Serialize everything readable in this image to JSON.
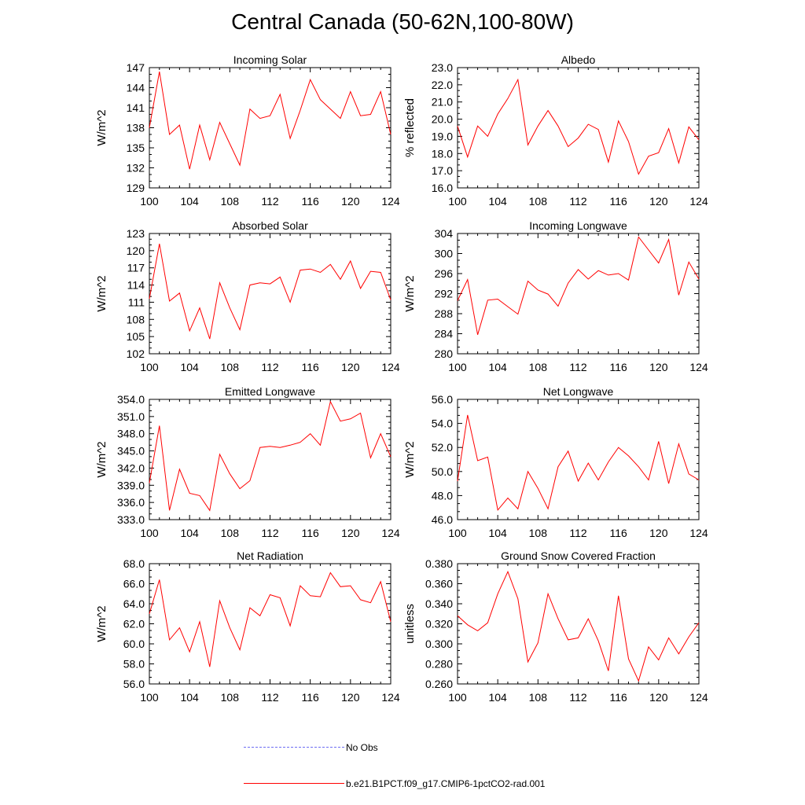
{
  "title": "Central Canada (50-62N,100-80W)",
  "legend": [
    {
      "label": "No Obs",
      "color": "#6d6df2",
      "style": "dashed"
    },
    {
      "label": "b.e21.B1PCT.f09_g17.CMIP6-1pctCO2-rad.001",
      "color": "#ff0000",
      "style": "solid"
    }
  ],
  "colors": {
    "series": "#ff0000",
    "axes": "#000000"
  },
  "chart_data": [
    {
      "type": "line",
      "title": "Incoming Solar",
      "ylabel": "W/m^2",
      "x": [
        100,
        101,
        102,
        103,
        104,
        105,
        106,
        107,
        108,
        109,
        110,
        111,
        112,
        113,
        114,
        115,
        116,
        117,
        118,
        119,
        120,
        121,
        122,
        123,
        124
      ],
      "xlim": [
        100,
        124
      ],
      "xticks": [
        "100",
        "104",
        "108",
        "112",
        "116",
        "120",
        "124"
      ],
      "ylim": [
        129,
        147
      ],
      "yticks": [
        "129",
        "132",
        "135",
        "138",
        "141",
        "144",
        "147"
      ],
      "series": [
        {
          "values": [
            138,
            146.4,
            137,
            138.4,
            131.8,
            138.4,
            133.2,
            138.8,
            135.6,
            132.4,
            140.8,
            139.4,
            139.8,
            143,
            136.4,
            140.6,
            145.2,
            142.2,
            140.8,
            139.4,
            143.4,
            139.8,
            140,
            143.4,
            137
          ]
        }
      ]
    },
    {
      "type": "line",
      "title": "Albedo",
      "ylabel": "% reflected",
      "x": [
        100,
        101,
        102,
        103,
        104,
        105,
        106,
        107,
        108,
        109,
        110,
        111,
        112,
        113,
        114,
        115,
        116,
        117,
        118,
        119,
        120,
        121,
        122,
        123,
        124
      ],
      "xlim": [
        100,
        124
      ],
      "xticks": [
        "100",
        "104",
        "108",
        "112",
        "116",
        "120",
        "124"
      ],
      "ylim": [
        16,
        23
      ],
      "yticks": [
        "16.0",
        "17.0",
        "18.0",
        "19.0",
        "20.0",
        "21.0",
        "22.0",
        "23.0"
      ],
      "series": [
        {
          "values": [
            19.6,
            17.8,
            19.6,
            19,
            20.3,
            21.2,
            22.3,
            18.5,
            19.6,
            20.5,
            19.6,
            18.4,
            18.9,
            19.7,
            19.4,
            17.5,
            19.9,
            18.7,
            16.8,
            17.85,
            18.05,
            19.45,
            17.45,
            19.55,
            18.8
          ]
        }
      ]
    },
    {
      "type": "line",
      "title": "Absorbed Solar",
      "ylabel": "W/m^2",
      "x": [
        100,
        101,
        102,
        103,
        104,
        105,
        106,
        107,
        108,
        109,
        110,
        111,
        112,
        113,
        114,
        115,
        116,
        117,
        118,
        119,
        120,
        121,
        122,
        123,
        124
      ],
      "xlim": [
        100,
        124
      ],
      "xticks": [
        "100",
        "104",
        "108",
        "112",
        "116",
        "120",
        "124"
      ],
      "ylim": [
        102,
        123
      ],
      "yticks": [
        "102",
        "105",
        "108",
        "111",
        "114",
        "117",
        "120",
        "123"
      ],
      "series": [
        {
          "values": [
            111.6,
            121.2,
            111.2,
            112.6,
            106,
            110,
            104.6,
            114.4,
            110,
            106.2,
            114,
            114.4,
            114.2,
            115.4,
            111,
            116.6,
            116.8,
            116.2,
            117.6,
            115,
            118.2,
            113.4,
            116.4,
            116.2,
            111.4
          ]
        }
      ]
    },
    {
      "type": "line",
      "title": "Incoming Longwave",
      "ylabel": "W/m^2",
      "x": [
        100,
        101,
        102,
        103,
        104,
        105,
        106,
        107,
        108,
        109,
        110,
        111,
        112,
        113,
        114,
        115,
        116,
        117,
        118,
        119,
        120,
        121,
        122,
        123,
        124
      ],
      "xlim": [
        100,
        124
      ],
      "xticks": [
        "100",
        "104",
        "108",
        "112",
        "116",
        "120",
        "124"
      ],
      "ylim": [
        280,
        304
      ],
      "yticks": [
        "280",
        "284",
        "288",
        "292",
        "296",
        "300",
        "304"
      ],
      "series": [
        {
          "values": [
            290.6,
            294.8,
            283.8,
            290.7,
            290.9,
            289.4,
            287.9,
            294.5,
            292.7,
            291.9,
            289.5,
            294.1,
            296.8,
            294.9,
            296.6,
            295.7,
            296,
            294.7,
            303.3,
            300.7,
            298.1,
            302.8,
            291.7,
            298.3,
            294.9
          ]
        }
      ]
    },
    {
      "type": "line",
      "title": "Emitted Longwave",
      "ylabel": "W/m^2",
      "x": [
        100,
        101,
        102,
        103,
        104,
        105,
        106,
        107,
        108,
        109,
        110,
        111,
        112,
        113,
        114,
        115,
        116,
        117,
        118,
        119,
        120,
        121,
        122,
        123,
        124
      ],
      "xlim": [
        100,
        124
      ],
      "xticks": [
        "100",
        "104",
        "108",
        "112",
        "116",
        "120",
        "124"
      ],
      "ylim": [
        333,
        354
      ],
      "yticks": [
        "333.0",
        "336.0",
        "339.0",
        "342.0",
        "345.0",
        "348.0",
        "351.0",
        "354.0"
      ],
      "series": [
        {
          "values": [
            339.4,
            349.4,
            334.6,
            341.8,
            337.6,
            337.2,
            334.6,
            344.4,
            341,
            338.4,
            339.8,
            345.6,
            345.8,
            345.6,
            346,
            346.5,
            348,
            346,
            353.6,
            350.2,
            350.6,
            351.6,
            343.8,
            348,
            344
          ]
        }
      ]
    },
    {
      "type": "line",
      "title": "Net Longwave",
      "ylabel": "W/m^2",
      "x": [
        100,
        101,
        102,
        103,
        104,
        105,
        106,
        107,
        108,
        109,
        110,
        111,
        112,
        113,
        114,
        115,
        116,
        117,
        118,
        119,
        120,
        121,
        122,
        123,
        124
      ],
      "xlim": [
        100,
        124
      ],
      "xticks": [
        "100",
        "104",
        "108",
        "112",
        "116",
        "120",
        "124"
      ],
      "ylim": [
        46,
        56
      ],
      "yticks": [
        "46.0",
        "48.0",
        "50.0",
        "52.0",
        "54.0",
        "56.0"
      ],
      "series": [
        {
          "values": [
            49.2,
            54.7,
            50.9,
            51.2,
            46.8,
            47.8,
            46.9,
            50,
            48.6,
            46.9,
            50.4,
            51.7,
            49.2,
            50.7,
            49.3,
            50.8,
            52,
            51.3,
            50.4,
            49.3,
            52.5,
            49,
            52.3,
            49.8,
            49.3
          ]
        }
      ]
    },
    {
      "type": "line",
      "title": "Net Radiation",
      "ylabel": "W/m^2",
      "x": [
        100,
        101,
        102,
        103,
        104,
        105,
        106,
        107,
        108,
        109,
        110,
        111,
        112,
        113,
        114,
        115,
        116,
        117,
        118,
        119,
        120,
        121,
        122,
        123,
        124
      ],
      "xlim": [
        100,
        124
      ],
      "xticks": [
        "100",
        "104",
        "108",
        "112",
        "116",
        "120",
        "124"
      ],
      "ylim": [
        56,
        68
      ],
      "yticks": [
        "56.0",
        "58.0",
        "60.0",
        "62.0",
        "64.0",
        "66.0",
        "68.0"
      ],
      "series": [
        {
          "values": [
            63,
            66.4,
            60.4,
            61.6,
            59.2,
            62.2,
            57.7,
            64.3,
            61.6,
            59.4,
            63.6,
            62.8,
            64.9,
            64.6,
            61.8,
            65.8,
            64.8,
            64.7,
            67.1,
            65.7,
            65.8,
            64.4,
            64.1,
            66.2,
            62.2
          ]
        }
      ]
    },
    {
      "type": "line",
      "title": "Ground Snow Covered Fraction",
      "ylabel": "unitless",
      "x": [
        100,
        101,
        102,
        103,
        104,
        105,
        106,
        107,
        108,
        109,
        110,
        111,
        112,
        113,
        114,
        115,
        116,
        117,
        118,
        119,
        120,
        121,
        122,
        123,
        124
      ],
      "xlim": [
        100,
        124
      ],
      "xticks": [
        "100",
        "104",
        "108",
        "112",
        "116",
        "120",
        "124"
      ],
      "ylim": [
        0.26,
        0.38
      ],
      "yticks": [
        "0.260",
        "0.280",
        "0.300",
        "0.320",
        "0.340",
        "0.360",
        "0.380"
      ],
      "series": [
        {
          "values": [
            0.328,
            0.319,
            0.313,
            0.321,
            0.35,
            0.372,
            0.345,
            0.282,
            0.301,
            0.35,
            0.325,
            0.304,
            0.306,
            0.325,
            0.303,
            0.273,
            0.348,
            0.285,
            0.263,
            0.297,
            0.284,
            0.306,
            0.29,
            0.307,
            0.321
          ]
        }
      ]
    }
  ]
}
